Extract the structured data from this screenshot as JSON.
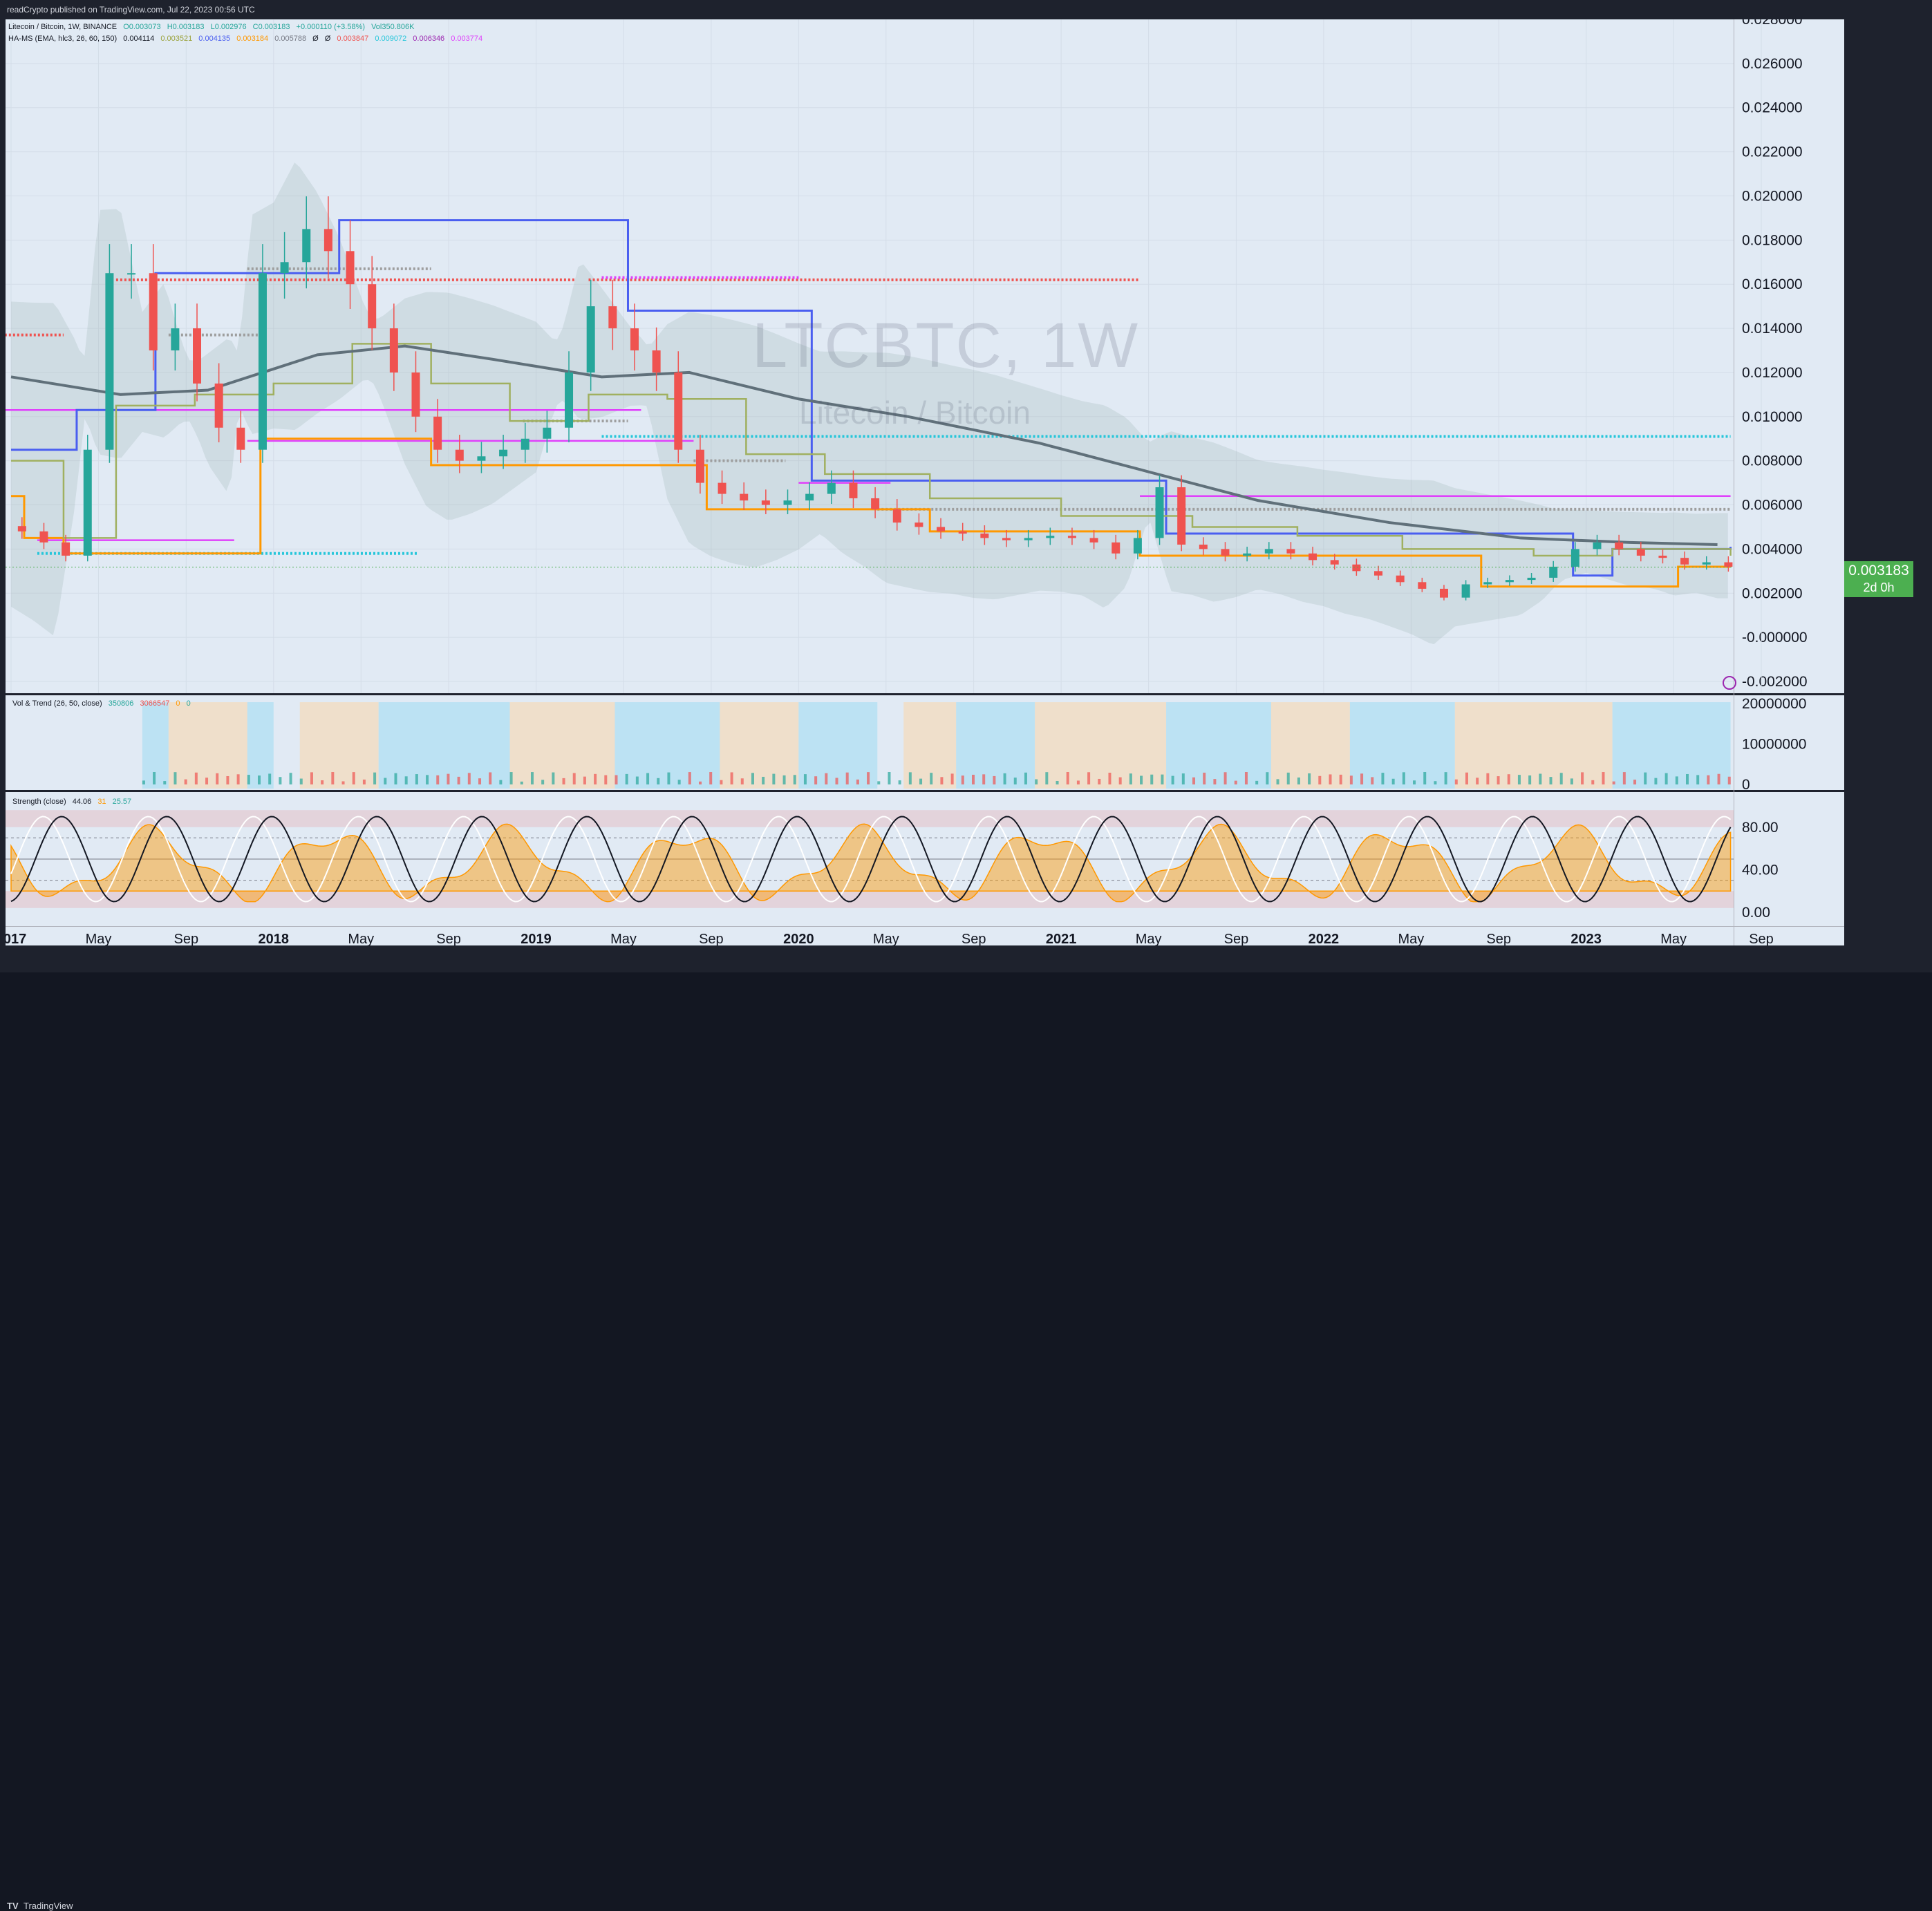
{
  "header": {
    "published": "readCrypto published on TradingView.com, Jul 22, 2023 00:56 UTC"
  },
  "legends": {
    "main_title": "Litecoin / Bitcoin, 1W, BINANCE",
    "ohlc": [
      "O0.003073",
      "H0.003183",
      "L0.002976",
      "C0.003183",
      "+0.000110 (+3.58%)"
    ],
    "volume": "Vol350.806K",
    "hams_label": "HA-MS (EMA, hlc3, 26, 60, 150)",
    "hams_values": [
      "0.004114",
      "0.003521",
      "0.004135",
      "0.003184",
      "0.005788",
      "Ø",
      "Ø",
      "0.003847",
      "0.009072",
      "0.006346",
      "0.003774"
    ],
    "vol_trend_label": "Vol & Trend (26, 50, close)",
    "vol_trend_values": [
      "350806",
      "3066547",
      "0",
      "0"
    ],
    "strength_label": "Strength (close)",
    "strength_values": [
      "44.06",
      "31",
      "25.57"
    ]
  },
  "watermark": {
    "symbol": "LTCBTC, 1W",
    "name": "Litecoin / Bitcoin"
  },
  "current_price": {
    "value": "0.003183",
    "countdown": "2d 0h"
  },
  "footer": {
    "brand": "TradingView"
  },
  "colors": {
    "chart_bg": "#e1eaf4",
    "up": "#26a69a",
    "down": "#ef5350",
    "blue_step": "#4a5ef0",
    "orange_step": "#ff9800",
    "olive_step": "#a0b060",
    "magenta": "#e040fb",
    "cyan_dots": "#26c6da",
    "red_dots": "#ef5350",
    "grey_dots": "#9e9e9e",
    "long_ma": "#60707a",
    "price_tag": "#4caf50"
  },
  "chart_data": [
    {
      "type": "line",
      "title": "LTCBTC, 1W",
      "subtitle": "Litecoin / Bitcoin",
      "y_ticks": [
        "0.028000",
        "0.026000",
        "0.024000",
        "0.022000",
        "0.020000",
        "0.018000",
        "0.016000",
        "0.014000",
        "0.012000",
        "0.010000",
        "0.008000",
        "0.006000",
        "0.004000",
        "0.002000",
        "-0.000000",
        "-0.002000"
      ],
      "ylim": [
        -0.002,
        0.028
      ],
      "x_ticks": [
        "2017",
        "May",
        "Sep",
        "2018",
        "May",
        "Sep",
        "2019",
        "May",
        "Sep",
        "2020",
        "May",
        "Sep",
        "2021",
        "May",
        "Sep",
        "2022",
        "May",
        "Sep",
        "2023",
        "May",
        "Sep"
      ],
      "series": [
        {
          "name": "Close",
          "points": [
            [
              "2017-01",
              0.0048
            ],
            [
              "2017-02",
              0.0043
            ],
            [
              "2017-03",
              0.0037
            ],
            [
              "2017-04",
              0.0085
            ],
            [
              "2017-05",
              0.0165
            ],
            [
              "2017-06",
              0.0165
            ],
            [
              "2017-07",
              0.013
            ],
            [
              "2017-08",
              0.014
            ],
            [
              "2017-09",
              0.0115
            ],
            [
              "2017-10",
              0.0095
            ],
            [
              "2017-11",
              0.0085
            ],
            [
              "2017-12",
              0.0165
            ],
            [
              "2018-01",
              0.017
            ],
            [
              "2018-02",
              0.0185
            ],
            [
              "2018-03",
              0.0175
            ],
            [
              "2018-04",
              0.016
            ],
            [
              "2018-05",
              0.014
            ],
            [
              "2018-06",
              0.012
            ],
            [
              "2018-07",
              0.01
            ],
            [
              "2018-08",
              0.0085
            ],
            [
              "2018-09",
              0.008
            ],
            [
              "2018-10",
              0.0082
            ],
            [
              "2018-11",
              0.0085
            ],
            [
              "2018-12",
              0.009
            ],
            [
              "2019-01",
              0.0095
            ],
            [
              "2019-02",
              0.012
            ],
            [
              "2019-03",
              0.015
            ],
            [
              "2019-04",
              0.014
            ],
            [
              "2019-05",
              0.013
            ],
            [
              "2019-06",
              0.012
            ],
            [
              "2019-07",
              0.0085
            ],
            [
              "2019-08",
              0.007
            ],
            [
              "2019-09",
              0.0065
            ],
            [
              "2019-10",
              0.0062
            ],
            [
              "2019-11",
              0.006
            ],
            [
              "2019-12",
              0.0062
            ],
            [
              "2020-01",
              0.0065
            ],
            [
              "2020-02",
              0.007
            ],
            [
              "2020-03",
              0.0063
            ],
            [
              "2020-04",
              0.0058
            ],
            [
              "2020-05",
              0.0052
            ],
            [
              "2020-06",
              0.005
            ],
            [
              "2020-07",
              0.0048
            ],
            [
              "2020-08",
              0.0047
            ],
            [
              "2020-09",
              0.0045
            ],
            [
              "2020-10",
              0.0044
            ],
            [
              "2020-11",
              0.0045
            ],
            [
              "2020-12",
              0.0046
            ],
            [
              "2021-01",
              0.0045
            ],
            [
              "2021-02",
              0.0043
            ],
            [
              "2021-03",
              0.0038
            ],
            [
              "2021-04",
              0.0045
            ],
            [
              "2021-05",
              0.0068
            ],
            [
              "2021-06",
              0.0042
            ],
            [
              "2021-07",
              0.004
            ],
            [
              "2021-08",
              0.0037
            ],
            [
              "2021-09",
              0.0038
            ],
            [
              "2021-10",
              0.004
            ],
            [
              "2021-11",
              0.0038
            ],
            [
              "2021-12",
              0.0035
            ],
            [
              "2022-01",
              0.0033
            ],
            [
              "2022-02",
              0.003
            ],
            [
              "2022-03",
              0.0028
            ],
            [
              "2022-04",
              0.0025
            ],
            [
              "2022-05",
              0.0022
            ],
            [
              "2022-06",
              0.0018
            ],
            [
              "2022-07",
              0.0024
            ],
            [
              "2022-08",
              0.0025
            ],
            [
              "2022-09",
              0.0026
            ],
            [
              "2022-10",
              0.0027
            ],
            [
              "2022-11",
              0.0032
            ],
            [
              "2022-12",
              0.004
            ],
            [
              "2023-01",
              0.0043
            ],
            [
              "2023-02",
              0.004
            ],
            [
              "2023-03",
              0.0037
            ],
            [
              "2023-04",
              0.0036
            ],
            [
              "2023-05",
              0.0033
            ],
            [
              "2023-06",
              0.0034
            ],
            [
              "2023-07",
              0.0032
            ]
          ]
        },
        {
          "name": "Long MA",
          "points": [
            [
              "2017-01",
              0.0118
            ],
            [
              "2017-06",
              0.011
            ],
            [
              "2017-10",
              0.0112
            ],
            [
              "2018-03",
              0.0128
            ],
            [
              "2018-07",
              0.0132
            ],
            [
              "2018-11",
              0.0126
            ],
            [
              "2019-04",
              0.0118
            ],
            [
              "2019-08",
              0.012
            ],
            [
              "2020-01",
              0.0108
            ],
            [
              "2020-06",
              0.01
            ],
            [
              "2020-12",
              0.0088
            ],
            [
              "2021-05",
              0.0075
            ],
            [
              "2021-10",
              0.0062
            ],
            [
              "2022-04",
              0.0052
            ],
            [
              "2022-10",
              0.0045
            ],
            [
              "2023-03",
              0.0043
            ],
            [
              "2023-07",
              0.0042
            ]
          ]
        }
      ],
      "levels": [
        {
          "name": "red-dotted",
          "value": 0.0162
        },
        {
          "name": "magenta-dotted",
          "value": 0.0163
        },
        {
          "name": "cyan-dotted",
          "value": 0.0091
        },
        {
          "name": "grey-dotted",
          "value": 0.0058
        },
        {
          "name": "magenta",
          "value": 0.0064
        }
      ],
      "grid": true
    },
    {
      "type": "bar",
      "title": "Vol & Trend (26, 50, close)",
      "y_ticks": [
        "20000000",
        "10000000",
        "0"
      ],
      "ylim": [
        0,
        20000000
      ]
    },
    {
      "type": "area",
      "title": "Strength (close)",
      "y_ticks": [
        "80.00",
        "40.00",
        "0.00"
      ],
      "ylim": [
        0,
        100
      ]
    }
  ]
}
